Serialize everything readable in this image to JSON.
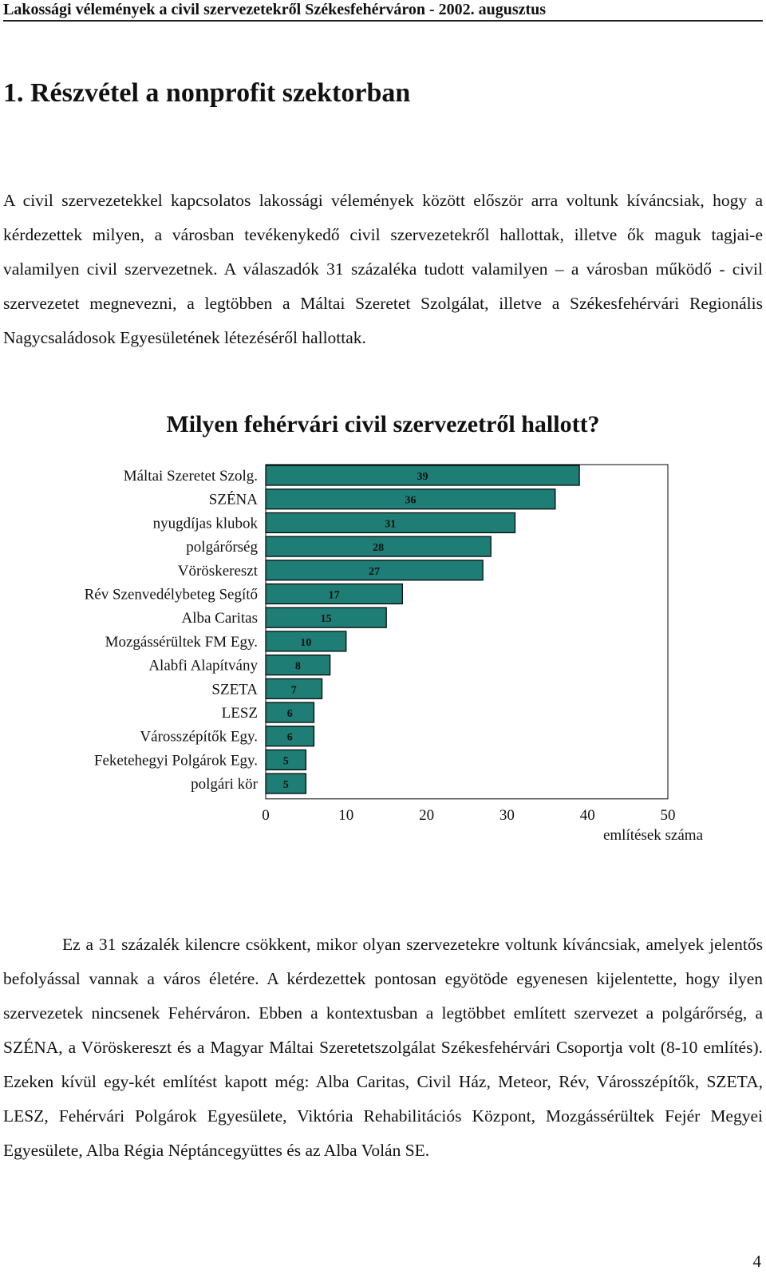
{
  "header": {
    "running_title": "Lakossági vélemények a civil szervezetekről Székesfehérváron - 2002. augusztus"
  },
  "section": {
    "title": "1. Részvétel a nonprofit szektorban"
  },
  "paragraphs": {
    "intro": "A civil szervezetekkel kapcsolatos lakossági vélemények között először arra voltunk kíváncsiak, hogy a kérdezettek milyen, a városban tevékenykedő civil szervezetekről hallottak, illetve ők maguk tagjai-e valamilyen civil szervezetnek. A válaszadók 31 százaléka tudott valamilyen – a városban működő - civil szervezetet megnevezni, a legtöbben a Máltai Szeretet Szolgálat, illetve a Székesfehérvári Regionális Nagycsaládosok Egyesületének létezéséről hallottak.",
    "followup": "Ez a 31 százalék kilencre csökkent, mikor olyan szervezetekre voltunk kíváncsiak, amelyek jelentős befolyással vannak a város életére. A kérdezettek pontosan egyötöde egyenesen kijelentette, hogy ilyen szervezetek nincsenek Fehérváron. Ebben a kontextusban a legtöbbet említett szervezet a polgárőrség, a SZÉNA, a Vöröskereszt és a Magyar Máltai Szeretetszolgálat Székesfehérvári Csoportja volt (8-10 említés). Ezeken kívül egy-két említést kapott még: Alba Caritas, Civil Ház, Meteor, Rév, Városszépítők, SZETA, LESZ, Fehérvári Polgárok Egyesülete, Viktória Rehabilitációs Központ, Mozgássérültek Fejér Megyei Egyesülete, Alba Régia Néptáncegyüttes és az Alba Volán SE."
  },
  "chart_data": {
    "type": "bar",
    "orientation": "horizontal",
    "title": "Milyen fehérvári civil szervezetről hallott?",
    "xlabel": "említések száma",
    "ylabel": "",
    "xlim": [
      0,
      50
    ],
    "xticks": [
      0,
      10,
      20,
      30,
      40,
      50
    ],
    "categories": [
      "Máltai Szeretet Szolg.",
      "SZÉNA",
      "nyugdíjas klubok",
      "polgárőrség",
      "Vöröskereszt",
      "Rév Szenvedélybeteg Segítő",
      "Alba Caritas",
      "Mozgássérültek FM Egy.",
      "Alabfi Alapítvány",
      "SZETA",
      "LESZ",
      "Városszépítők Egy.",
      "Feketehegyi Polgárok Egy.",
      "polgári kör"
    ],
    "values": [
      39,
      36,
      31,
      28,
      27,
      17,
      15,
      10,
      8,
      7,
      6,
      6,
      5,
      5
    ],
    "bar_color": "#1e7d74",
    "grid": false,
    "data_labels": true
  },
  "footer": {
    "page_number": "4"
  }
}
